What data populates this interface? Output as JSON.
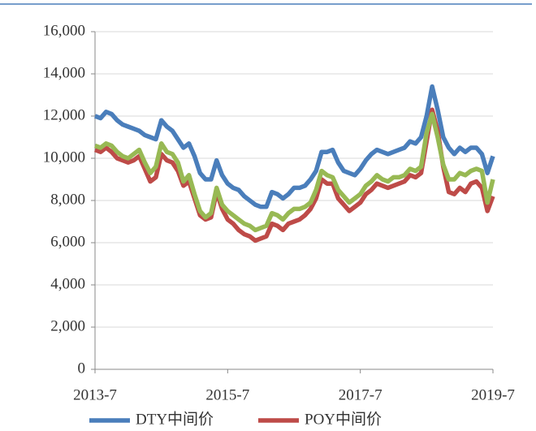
{
  "chart_data": {
    "type": "line",
    "x": [
      "2013-7",
      "2013-8",
      "2013-9",
      "2013-10",
      "2013-11",
      "2013-12",
      "2014-1",
      "2014-2",
      "2014-3",
      "2014-4",
      "2014-5",
      "2014-6",
      "2014-7",
      "2014-8",
      "2014-9",
      "2014-10",
      "2014-11",
      "2014-12",
      "2015-1",
      "2015-2",
      "2015-3",
      "2015-4",
      "2015-5",
      "2015-6",
      "2015-7",
      "2015-8",
      "2015-9",
      "2015-10",
      "2015-11",
      "2015-12",
      "2016-1",
      "2016-2",
      "2016-3",
      "2016-4",
      "2016-5",
      "2016-6",
      "2016-7",
      "2016-8",
      "2016-9",
      "2016-10",
      "2016-11",
      "2016-12",
      "2017-1",
      "2017-2",
      "2017-3",
      "2017-4",
      "2017-5",
      "2017-6",
      "2017-7",
      "2017-8",
      "2017-9",
      "2017-10",
      "2017-11",
      "2017-12",
      "2018-1",
      "2018-2",
      "2018-3",
      "2018-4",
      "2018-5",
      "2018-6",
      "2018-7",
      "2018-8",
      "2018-9",
      "2018-10",
      "2018-11",
      "2018-12",
      "2019-1",
      "2019-2",
      "2019-3",
      "2019-4",
      "2019-5",
      "2019-6",
      "2019-7"
    ],
    "xticks": [
      "2013-7",
      "2015-7",
      "2017-7",
      "2019-7"
    ],
    "series": [
      {
        "name": "DTY中间价",
        "color": "#4a7ebb",
        "values": [
          12000,
          11900,
          12200,
          12100,
          11800,
          11600,
          11500,
          11400,
          11300,
          11100,
          11000,
          10900,
          11800,
          11500,
          11300,
          10900,
          10500,
          10700,
          10100,
          9300,
          9000,
          9000,
          9900,
          9200,
          8800,
          8600,
          8500,
          8200,
          8000,
          7800,
          7700,
          7700,
          8400,
          8300,
          8100,
          8300,
          8600,
          8600,
          8700,
          9000,
          9400,
          10300,
          10300,
          10400,
          9800,
          9400,
          9300,
          9200,
          9500,
          9900,
          10200,
          10400,
          10300,
          10200,
          10300,
          10400,
          10500,
          10800,
          10700,
          11000,
          12000,
          13400,
          12300,
          11000,
          10500,
          10200,
          10500,
          10300,
          10500,
          10500,
          10200,
          9300,
          10100
        ]
      },
      {
        "name": "POY中间价",
        "color": "#be4b48",
        "values": [
          10400,
          10300,
          10500,
          10300,
          10000,
          9900,
          9800,
          9900,
          10100,
          9500,
          8900,
          9100,
          10200,
          9900,
          9800,
          9400,
          8700,
          8900,
          8100,
          7300,
          7100,
          7200,
          8400,
          7600,
          7100,
          6900,
          6600,
          6400,
          6300,
          6100,
          6200,
          6300,
          6900,
          6800,
          6600,
          6900,
          7000,
          7100,
          7300,
          7600,
          8100,
          9000,
          8800,
          8800,
          8100,
          7800,
          7500,
          7700,
          7900,
          8300,
          8500,
          8800,
          8700,
          8600,
          8700,
          8800,
          8900,
          9200,
          9100,
          9300,
          10800,
          12300,
          11300,
          9600,
          8400,
          8300,
          8600,
          8400,
          8800,
          8900,
          8600,
          7500,
          8200
        ]
      },
      {
        "color": "#98b954",
        "values": [
          10600,
          10500,
          10700,
          10600,
          10300,
          10100,
          10000,
          10200,
          10400,
          9800,
          9300,
          9600,
          10700,
          10300,
          10200,
          9800,
          8900,
          9200,
          8300,
          7500,
          7200,
          7400,
          8600,
          7800,
          7500,
          7300,
          7100,
          6900,
          6800,
          6600,
          6700,
          6800,
          7400,
          7300,
          7100,
          7400,
          7600,
          7600,
          7700,
          7900,
          8500,
          9400,
          9200,
          9100,
          8500,
          8200,
          7900,
          8100,
          8300,
          8700,
          8900,
          9200,
          9000,
          8900,
          9100,
          9100,
          9200,
          9500,
          9400,
          9600,
          11200,
          12100,
          11000,
          9700,
          9000,
          9000,
          9300,
          9200,
          9400,
          9500,
          9400,
          7900,
          9000
        ]
      }
    ],
    "ylim": [
      0,
      16000
    ],
    "yticks": [
      0,
      {
        "value": 2000,
        "label": "2,000"
      },
      {
        "value": 4000,
        "label": "4,000"
      },
      {
        "value": 6000,
        "label": "6,000"
      },
      {
        "value": 8000,
        "label": "8,000"
      },
      {
        "value": 10000,
        "label": "10,000"
      },
      {
        "value": 12000,
        "label": "12,000"
      },
      {
        "value": 14000,
        "label": "14,000"
      },
      {
        "value": 16000,
        "label": "16,000"
      }
    ],
    "grid": true
  }
}
